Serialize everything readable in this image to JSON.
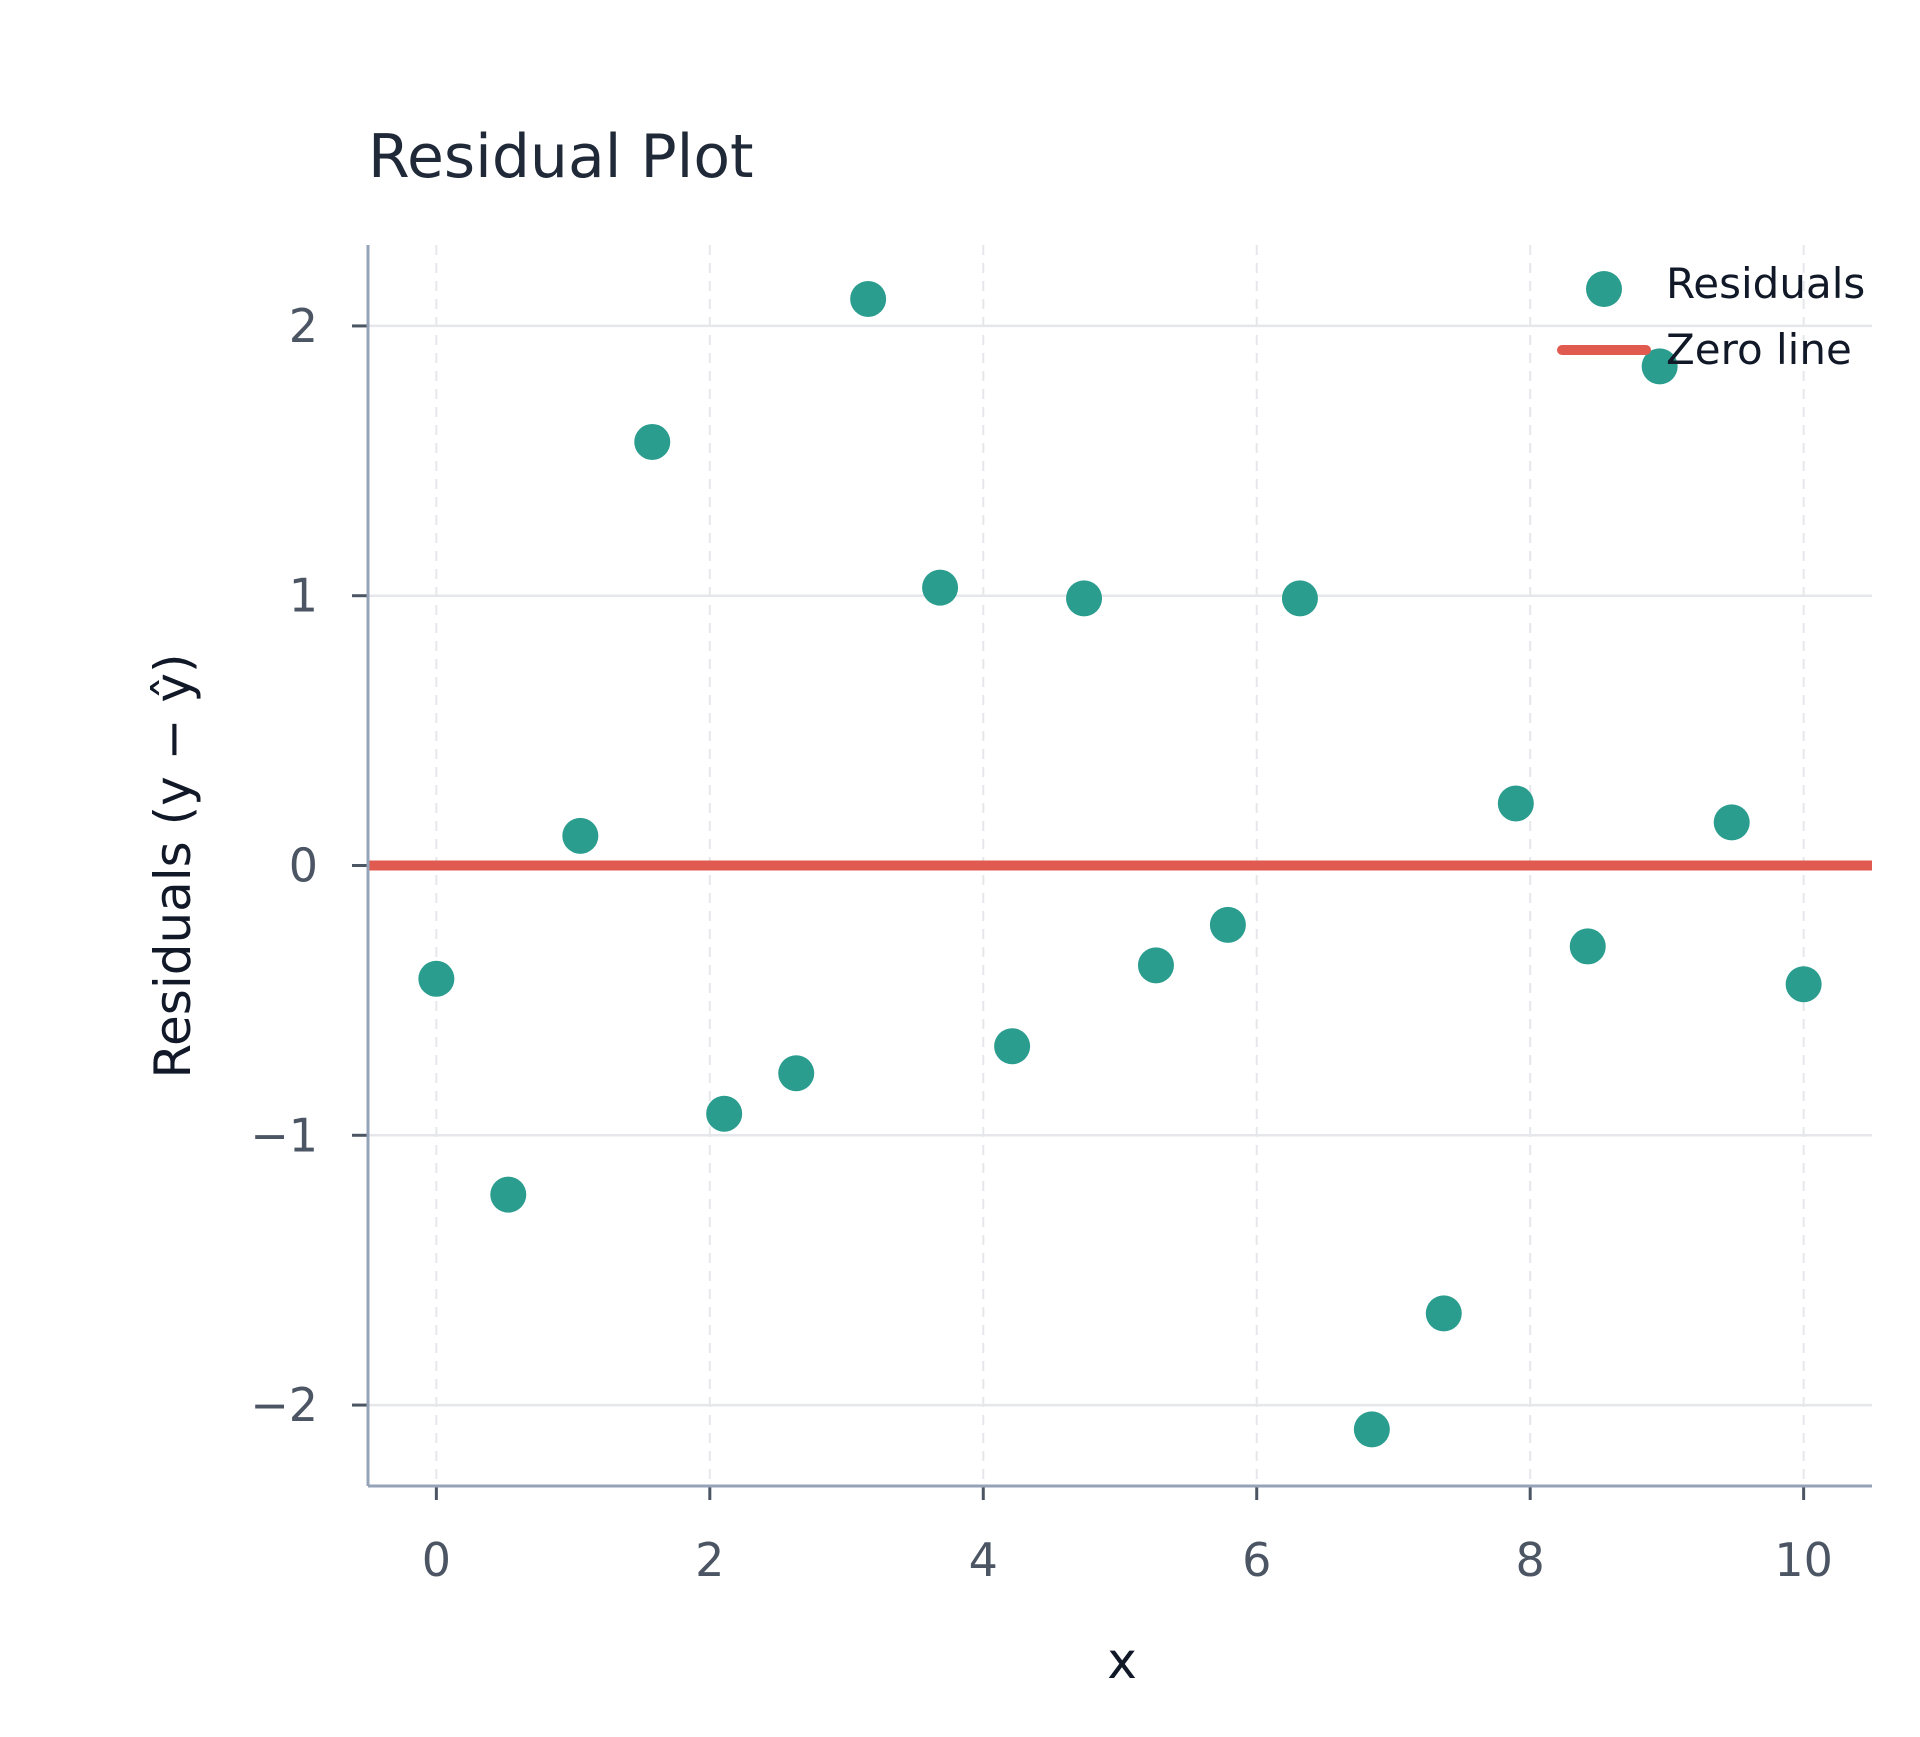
{
  "chart_data": {
    "type": "scatter",
    "title": "Residual Plot",
    "xlabel": "x",
    "ylabel": "Residuals (y − ŷ)",
    "xlim": [
      -0.5,
      10.5
    ],
    "ylim": [
      -2.3,
      2.3
    ],
    "xticks": [
      0,
      2,
      4,
      6,
      8,
      10
    ],
    "yticks": [
      -2,
      -1,
      0,
      1,
      2
    ],
    "xtick_labels": [
      "0",
      "2",
      "4",
      "6",
      "8",
      "10"
    ],
    "ytick_labels": [
      "−2",
      "−1",
      "0",
      "1",
      "2"
    ],
    "grid": true,
    "legend_position": "top-right",
    "series": [
      {
        "name": "Residuals",
        "kind": "scatter",
        "color": "#2a9d8f",
        "x": [
          0.0,
          0.526,
          1.053,
          1.579,
          2.105,
          2.632,
          3.158,
          3.684,
          4.211,
          4.737,
          5.263,
          5.789,
          6.316,
          6.842,
          7.368,
          7.895,
          8.421,
          8.947,
          9.474,
          10.0
        ],
        "y": [
          -0.42,
          -1.22,
          0.11,
          1.57,
          -0.92,
          -0.77,
          2.1,
          1.03,
          -0.67,
          0.99,
          -0.37,
          -0.22,
          0.99,
          -2.09,
          -1.66,
          0.23,
          -0.3,
          1.85,
          0.16,
          -0.44
        ]
      },
      {
        "name": "Zero line",
        "kind": "hline",
        "color": "#e05a4f",
        "y": 0
      }
    ]
  }
}
